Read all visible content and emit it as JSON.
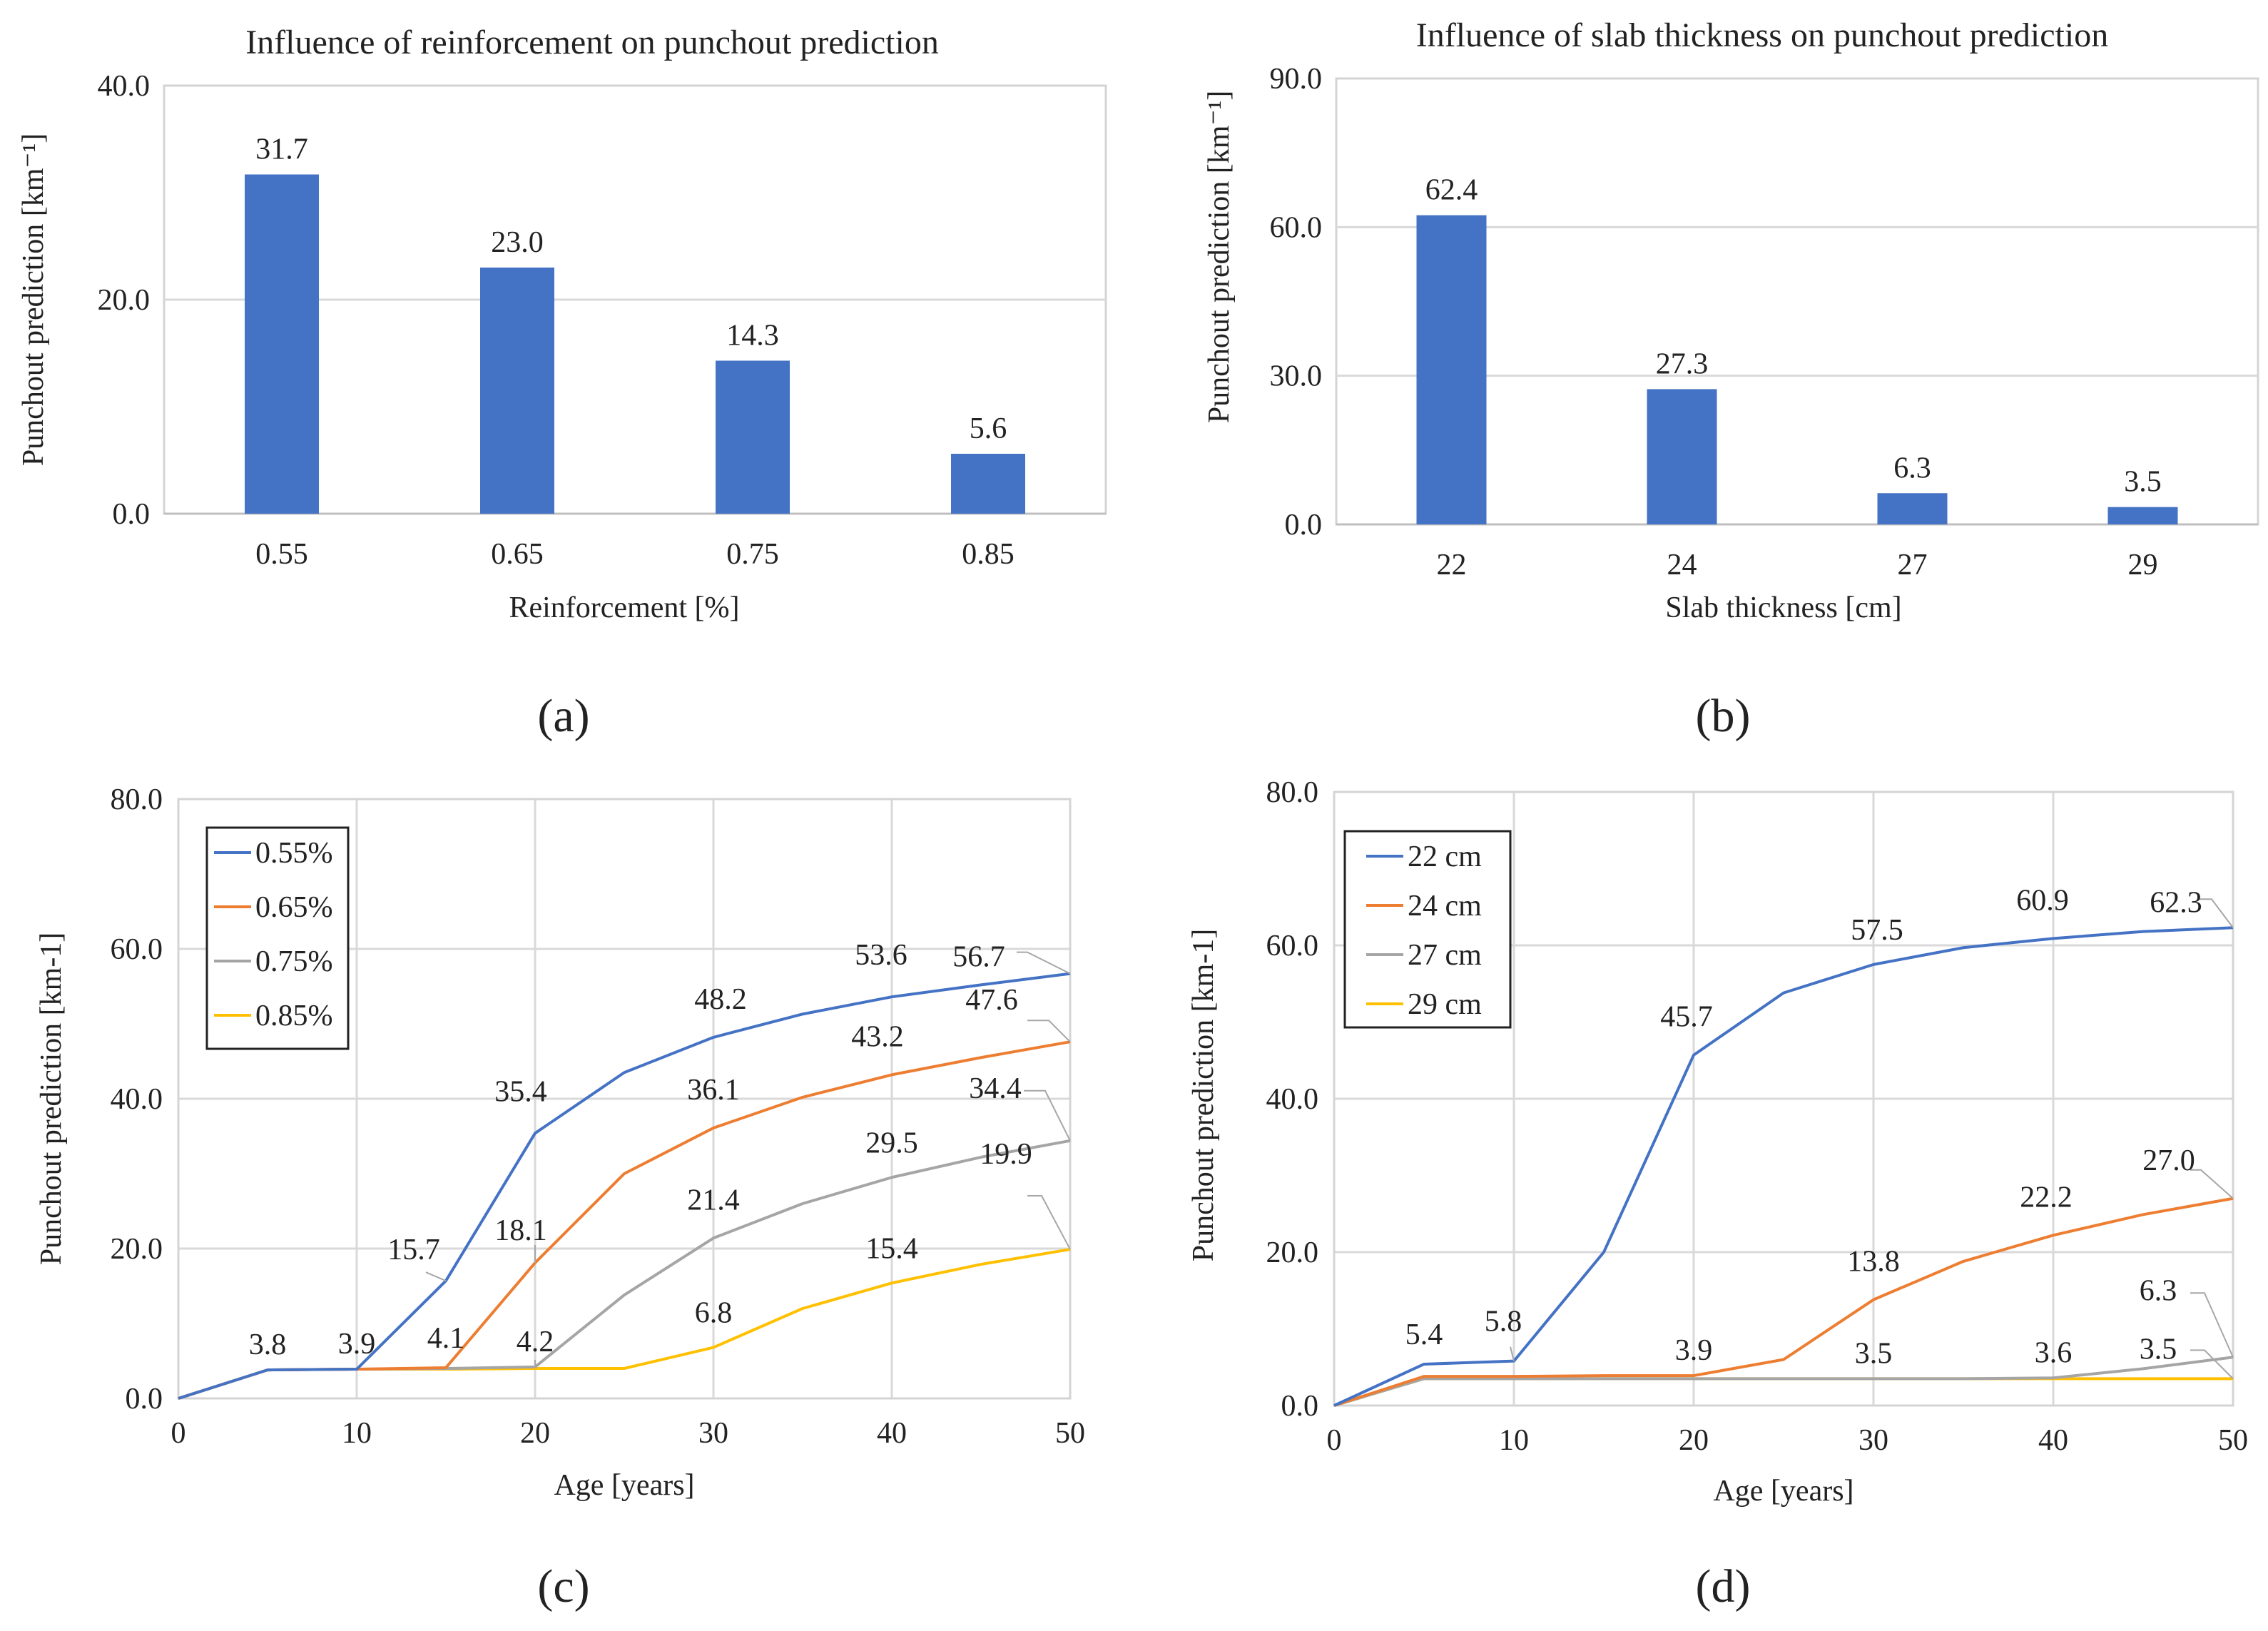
{
  "captions": {
    "a": "(a)",
    "b": "(b)",
    "c": "(c)",
    "d": "(d)"
  },
  "chart_data": [
    {
      "id": "a",
      "type": "bar",
      "title": "Influence of reinforcement on punchout prediction",
      "xlabel": "Reinforcement  [%]",
      "ylabel": "Punchout prediction  [km⁻¹]",
      "categories": [
        "0.55",
        "0.65",
        "0.75",
        "0.85"
      ],
      "values": [
        31.7,
        23.0,
        14.3,
        5.6
      ],
      "data_labels": [
        "31.7",
        "23.0",
        "14.3",
        "5.6"
      ],
      "ylim": [
        0,
        40
      ],
      "yticks": [
        "0.0",
        "20.0",
        "40.0"
      ],
      "grid": true,
      "color": "#4472C4"
    },
    {
      "id": "b",
      "type": "bar",
      "title": "Influence of slab thickness on punchout prediction",
      "xlabel": "Slab thickness  [cm]",
      "ylabel": "Punchout prediction  [km⁻¹]",
      "categories": [
        "22",
        "24",
        "27",
        "29"
      ],
      "values": [
        62.4,
        27.3,
        6.3,
        3.5
      ],
      "data_labels": [
        "62.4",
        "27.3",
        "6.3",
        "3.5"
      ],
      "ylim": [
        0,
        90
      ],
      "yticks": [
        "0.0",
        "30.0",
        "60.0",
        "90.0"
      ],
      "grid": true,
      "color": "#4472C4"
    },
    {
      "id": "c",
      "type": "line",
      "xlabel": "Age [years]",
      "ylabel": "Punchout prediction [km-1]",
      "x": [
        0,
        5,
        10,
        15,
        20,
        25,
        30,
        35,
        40,
        45,
        50
      ],
      "xlim": [
        0,
        50
      ],
      "ylim": [
        0,
        80
      ],
      "xticks": [
        "0",
        "10",
        "20",
        "30",
        "40",
        "50"
      ],
      "yticks": [
        "0.0",
        "20.0",
        "40.0",
        "60.0",
        "80.0"
      ],
      "legend": "top-left",
      "series": [
        {
          "name": "0.55%",
          "color": "#4472C4",
          "values": [
            0,
            3.8,
            3.9,
            15.7,
            35.4,
            43.5,
            48.2,
            51.3,
            53.6,
            55.2,
            56.7
          ]
        },
        {
          "name": "0.65%",
          "color": "#ED7D31",
          "values": [
            0,
            3.8,
            3.9,
            4.1,
            18.1,
            30.0,
            36.1,
            40.2,
            43.2,
            45.5,
            47.6
          ]
        },
        {
          "name": "0.75%",
          "color": "#A5A5A5",
          "values": [
            0,
            3.8,
            3.9,
            4.0,
            4.2,
            13.8,
            21.4,
            26.0,
            29.5,
            32.2,
            34.4
          ]
        },
        {
          "name": "0.85%",
          "color": "#FFC000",
          "values": [
            0,
            3.8,
            3.9,
            3.9,
            4.0,
            4.0,
            6.8,
            12.0,
            15.4,
            17.9,
            19.9
          ]
        }
      ],
      "labels": [
        {
          "text": "3.8",
          "series": 0,
          "x": 5
        },
        {
          "text": "3.9",
          "series": 0,
          "x": 10
        },
        {
          "text": "15.7",
          "series": 0,
          "x": 15
        },
        {
          "text": "35.4",
          "series": 0,
          "x": 20
        },
        {
          "text": "48.2",
          "series": 0,
          "x": 30
        },
        {
          "text": "53.6",
          "series": 0,
          "x": 40
        },
        {
          "text": "56.7",
          "series": 0,
          "x": 50
        },
        {
          "text": "4.1",
          "series": 1,
          "x": 15
        },
        {
          "text": "18.1",
          "series": 1,
          "x": 20
        },
        {
          "text": "36.1",
          "series": 1,
          "x": 30
        },
        {
          "text": "43.2",
          "series": 1,
          "x": 40
        },
        {
          "text": "47.6",
          "series": 1,
          "x": 50
        },
        {
          "text": "4.2",
          "series": 2,
          "x": 20
        },
        {
          "text": "21.4",
          "series": 2,
          "x": 30
        },
        {
          "text": "29.5",
          "series": 2,
          "x": 40
        },
        {
          "text": "34.4",
          "series": 2,
          "x": 50
        },
        {
          "text": "6.8",
          "series": 3,
          "x": 30
        },
        {
          "text": "15.4",
          "series": 3,
          "x": 40
        },
        {
          "text": "19.9",
          "series": 3,
          "x": 50
        }
      ]
    },
    {
      "id": "d",
      "type": "line",
      "xlabel": "Age [years]",
      "ylabel": "Punchout prediction [km-1]",
      "x": [
        0,
        5,
        10,
        15,
        20,
        25,
        30,
        35,
        40,
        45,
        50
      ],
      "xlim": [
        0,
        50
      ],
      "ylim": [
        0,
        80
      ],
      "xticks": [
        "0",
        "10",
        "20",
        "30",
        "40",
        "50"
      ],
      "yticks": [
        "0.0",
        "20.0",
        "40.0",
        "60.0",
        "80.0"
      ],
      "legend": "top-left",
      "series": [
        {
          "name": "22 cm",
          "color": "#4472C4",
          "values": [
            0,
            5.4,
            5.8,
            20.0,
            45.7,
            53.8,
            57.5,
            59.7,
            60.9,
            61.8,
            62.3
          ]
        },
        {
          "name": "24 cm",
          "color": "#ED7D31",
          "values": [
            0,
            3.8,
            3.8,
            3.9,
            3.9,
            6.0,
            13.8,
            18.8,
            22.2,
            24.9,
            27.0
          ]
        },
        {
          "name": "27 cm",
          "color": "#A5A5A5",
          "values": [
            0,
            3.5,
            3.5,
            3.5,
            3.5,
            3.5,
            3.5,
            3.5,
            3.6,
            4.8,
            6.3
          ]
        },
        {
          "name": "29 cm",
          "color": "#FFC000",
          "values": [
            0,
            3.5,
            3.5,
            3.5,
            3.5,
            3.5,
            3.5,
            3.5,
            3.5,
            3.5,
            3.5
          ]
        }
      ],
      "labels": [
        {
          "text": "5.4",
          "series": 0,
          "x": 5
        },
        {
          "text": "5.8",
          "series": 0,
          "x": 10
        },
        {
          "text": "45.7",
          "series": 0,
          "x": 20
        },
        {
          "text": "57.5",
          "series": 0,
          "x": 30
        },
        {
          "text": "60.9",
          "series": 0,
          "x": 40
        },
        {
          "text": "62.3",
          "series": 0,
          "x": 50
        },
        {
          "text": "3.9",
          "series": 1,
          "x": 20
        },
        {
          "text": "13.8",
          "series": 1,
          "x": 30
        },
        {
          "text": "22.2",
          "series": 1,
          "x": 40
        },
        {
          "text": "27.0",
          "series": 1,
          "x": 50
        },
        {
          "text": "3.5",
          "series": 3,
          "x": 30
        },
        {
          "text": "3.6",
          "series": 2,
          "x": 40
        },
        {
          "text": "6.3",
          "series": 2,
          "x": 50
        },
        {
          "text": "3.5",
          "series": 3,
          "x": 50
        }
      ]
    }
  ]
}
